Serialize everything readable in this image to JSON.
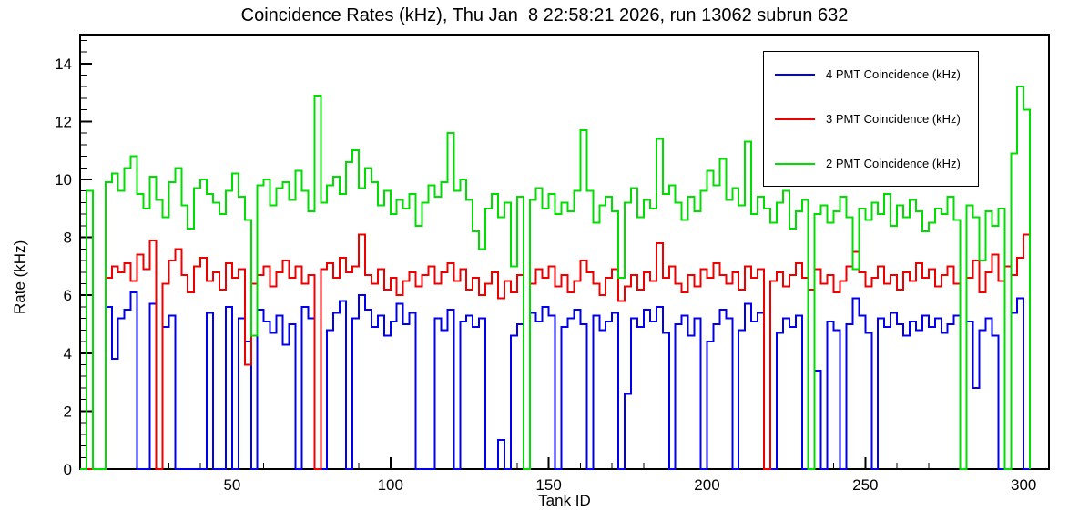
{
  "chart_data": {
    "type": "line",
    "style": "histogram-step",
    "title": "Coincidence Rates (kHz), Thu Jan  8 22:58:21 2026, run 13062 subrun 632",
    "xlabel": "Tank ID",
    "ylabel": "Rate (kHz)",
    "xlim": [
      2,
      308
    ],
    "ylim": [
      0,
      15
    ],
    "xticks": [
      50,
      100,
      150,
      200,
      250,
      300
    ],
    "yticks": [
      0,
      2,
      4,
      6,
      8,
      10,
      12,
      14
    ],
    "x_minor_step": 10,
    "y_minor_step": 0.4,
    "bin_start": 2,
    "bin_width": 2,
    "grid": false,
    "legend_position": "top-right",
    "series": [
      {
        "name": "4 PMT Coincidence (kHz)",
        "color": "#0000ee",
        "values": [
          0,
          0,
          0,
          0,
          5.6,
          3.8,
          5.2,
          5.5,
          6.1,
          0,
          0,
          5.7,
          0,
          4.9,
          5.3,
          0,
          0,
          0,
          0,
          0,
          5.4,
          0,
          0,
          5.6,
          0,
          5.2,
          4.4,
          0,
          5.5,
          5.1,
          4.7,
          5.3,
          4.3,
          5.0,
          0,
          5.6,
          5.2,
          0,
          0,
          4.8,
          5.4,
          5.8,
          0,
          5.2,
          6.0,
          5.5,
          4.9,
          5.3,
          4.6,
          5.1,
          5.7,
          5.0,
          5.4,
          0,
          0,
          0,
          5.2,
          4.8,
          5.5,
          0,
          5.1,
          5.3,
          4.9,
          5.2,
          0,
          0,
          1.0,
          0,
          4.6,
          5.0,
          0,
          5.4,
          5.1,
          5.6,
          5.3,
          0,
          4.9,
          5.2,
          5.5,
          5.0,
          0,
          5.3,
          4.8,
          5.1,
          5.4,
          0,
          2.6,
          5.2,
          4.9,
          5.5,
          5.1,
          5.6,
          4.7,
          0,
          5.0,
          5.3,
          4.6,
          5.2,
          0,
          4.4,
          5.0,
          5.5,
          5.2,
          0,
          4.8,
          5.7,
          5.1,
          5.4,
          0,
          0,
          4.7,
          5.2,
          4.9,
          5.3,
          0,
          0,
          3.4,
          0,
          5.1,
          4.8,
          0,
          5.0,
          5.9,
          5.3,
          4.7,
          0,
          5.2,
          4.9,
          5.4,
          5.0,
          4.6,
          5.1,
          4.8,
          5.3,
          4.9,
          5.2,
          4.7,
          5.0,
          5.3,
          0,
          5.1,
          2.8,
          4.8,
          5.2,
          4.6,
          0,
          0,
          5.4,
          5.9,
          0
        ]
      },
      {
        "name": "3 PMT Coincidence (kHz)",
        "color": "#ee0000",
        "values": [
          0,
          0,
          0,
          0,
          6.6,
          7.0,
          6.8,
          7.1,
          6.5,
          7.4,
          6.9,
          7.9,
          0,
          6.4,
          7.2,
          7.6,
          6.7,
          6.1,
          7.0,
          7.3,
          6.5,
          6.8,
          6.2,
          7.1,
          6.6,
          6.9,
          3.6,
          6.4,
          6.7,
          7.0,
          6.3,
          6.8,
          7.2,
          6.6,
          7.0,
          6.4,
          6.7,
          0,
          6.9,
          7.1,
          6.6,
          7.3,
          6.8,
          7.0,
          8.1,
          6.7,
          6.4,
          6.9,
          6.2,
          6.6,
          6.0,
          6.5,
          6.8,
          6.3,
          6.7,
          7.0,
          6.4,
          6.8,
          7.1,
          6.5,
          6.9,
          6.2,
          6.6,
          6.0,
          6.4,
          6.8,
          5.9,
          6.5,
          6.1,
          6.7,
          0,
          6.4,
          6.9,
          6.6,
          7.0,
          6.3,
          6.7,
          6.1,
          6.5,
          7.2,
          6.8,
          6.4,
          6.0,
          6.6,
          6.9,
          5.8,
          6.3,
          6.7,
          6.2,
          6.8,
          6.5,
          7.8,
          6.6,
          7.0,
          6.4,
          6.1,
          6.7,
          6.3,
          6.9,
          6.6,
          7.1,
          6.7,
          6.4,
          6.8,
          6.2,
          7.0,
          6.6,
          6.9,
          0,
          6.5,
          6.8,
          6.3,
          6.7,
          7.1,
          6.6,
          6.2,
          6.9,
          6.4,
          6.7,
          6.1,
          6.5,
          7.0,
          7.5,
          6.8,
          6.3,
          6.6,
          7.0,
          6.4,
          6.7,
          6.2,
          6.8,
          6.5,
          7.1,
          6.6,
          6.9,
          6.3,
          6.7,
          7.0,
          6.4,
          0,
          6.6,
          7.2,
          6.1,
          6.8,
          7.4,
          6.5,
          7.0,
          6.7,
          7.3,
          8.1
        ]
      },
      {
        "name": "2 PMT Coincidence (kHz)",
        "color": "#00dd00",
        "values": [
          0,
          9.6,
          0,
          0,
          9.9,
          10.2,
          9.6,
          10.4,
          10.8,
          9.5,
          9.0,
          10.1,
          9.3,
          8.7,
          9.9,
          10.4,
          9.1,
          8.3,
          9.7,
          10.0,
          9.5,
          9.2,
          8.8,
          9.6,
          10.2,
          9.4,
          8.6,
          4.6,
          9.8,
          10.0,
          9.1,
          9.7,
          9.9,
          9.3,
          10.3,
          9.6,
          8.9,
          12.9,
          9.2,
          9.8,
          10.1,
          9.5,
          10.6,
          11.0,
          9.7,
          10.4,
          9.9,
          9.1,
          9.6,
          8.8,
          9.3,
          9.0,
          9.5,
          8.4,
          9.2,
          9.8,
          9.4,
          9.9,
          11.6,
          9.6,
          10.0,
          9.3,
          8.2,
          7.6,
          9.0,
          9.5,
          8.7,
          9.2,
          7.0,
          9.4,
          0,
          9.3,
          9.7,
          9.0,
          9.5,
          8.8,
          9.2,
          8.9,
          9.6,
          11.7,
          9.6,
          8.5,
          9.1,
          9.4,
          8.9,
          6.6,
          9.2,
          9.7,
          8.7,
          9.3,
          9.0,
          11.4,
          9.5,
          9.8,
          9.2,
          8.6,
          9.4,
          8.9,
          9.6,
          10.3,
          9.8,
          10.7,
          9.3,
          9.7,
          9.1,
          11.3,
          8.8,
          9.4,
          9.0,
          8.5,
          9.2,
          9.6,
          8.3,
          8.9,
          9.3,
          0,
          8.8,
          9.1,
          8.5,
          8.9,
          9.4,
          8.7,
          6.9,
          9.0,
          8.6,
          9.2,
          8.8,
          9.5,
          8.4,
          9.1,
          8.7,
          9.3,
          8.9,
          8.2,
          8.5,
          9.0,
          8.8,
          9.4,
          8.6,
          0,
          9.1,
          8.7,
          7.2,
          8.9,
          8.4,
          9.0,
          0,
          10.9,
          13.2,
          12.4
        ]
      }
    ]
  }
}
